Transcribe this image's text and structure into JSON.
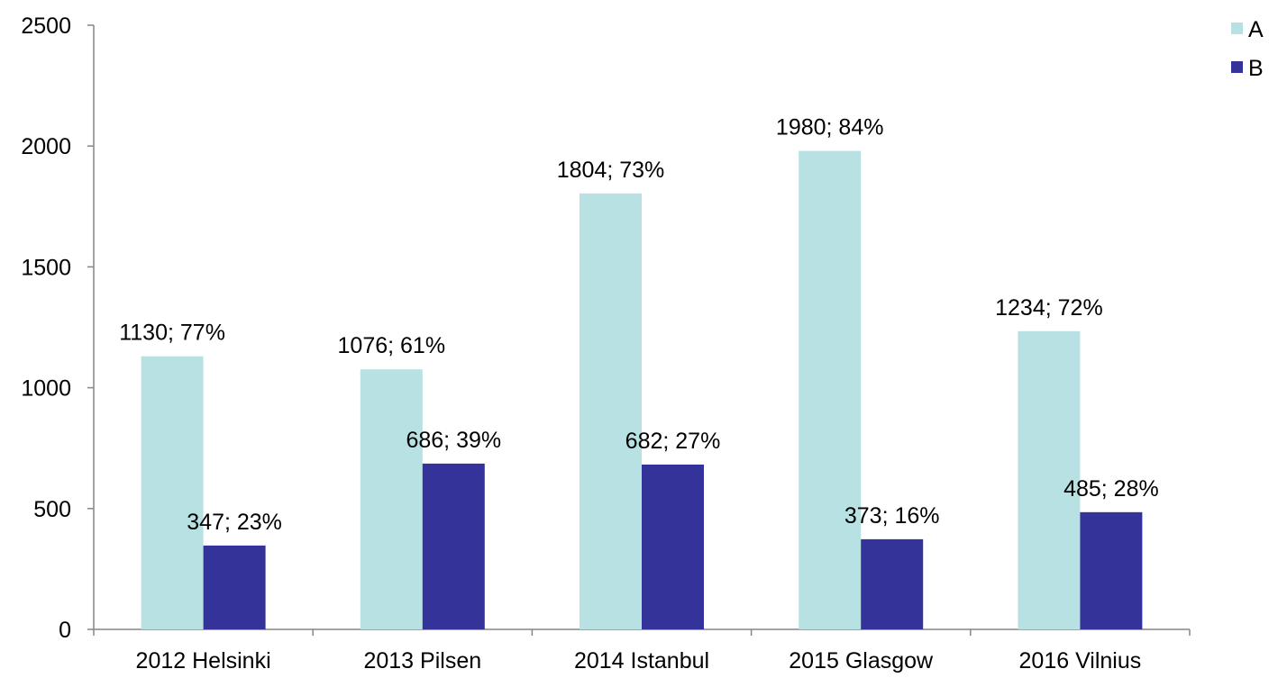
{
  "chart_data": {
    "type": "bar",
    "title": "",
    "xlabel": "",
    "ylabel": "",
    "categories": [
      "2012 Helsinki",
      "2013 Pilsen",
      "2014 Istanbul",
      "2015 Glasgow",
      "2016 Vilnius"
    ],
    "series": [
      {
        "name": "A",
        "color": "#b7e1e2",
        "values": [
          1130,
          1076,
          1804,
          1980,
          1234
        ],
        "labels": [
          "1130; 77%",
          "1076; 61%",
          "1804; 73%",
          "1980; 84%",
          "1234; 72%"
        ]
      },
      {
        "name": "B",
        "color": "#333399",
        "values": [
          347,
          686,
          682,
          373,
          485
        ],
        "labels": [
          "347; 23%",
          "686; 39%",
          "682; 27%",
          "373; 16%",
          "485; 28%"
        ]
      }
    ],
    "ylim": [
      0,
      2500
    ],
    "yticks": [
      "0",
      "500",
      "1000",
      "1500",
      "2000",
      "2500"
    ],
    "grid": false,
    "legend": "top-right"
  }
}
